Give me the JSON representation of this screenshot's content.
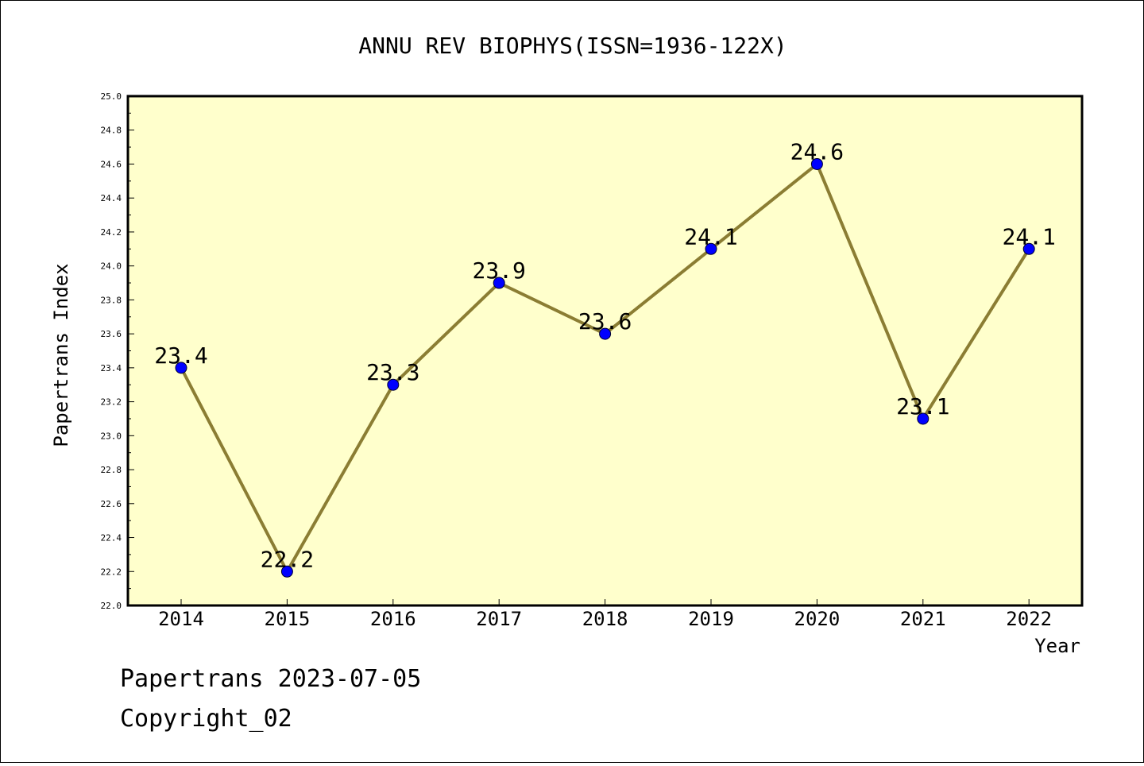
{
  "chart_data": {
    "type": "line",
    "title": "ANNU REV BIOPHYS(ISSN=1936-122X)",
    "xlabel": "Year",
    "ylabel": "Papertrans Index",
    "categories": [
      "2014",
      "2015",
      "2016",
      "2017",
      "2018",
      "2019",
      "2020",
      "2021",
      "2022"
    ],
    "values": [
      23.4,
      22.2,
      23.3,
      23.9,
      23.6,
      24.1,
      24.6,
      23.1,
      24.1
    ],
    "data_labels": [
      "23.4",
      "22.2",
      "23.3",
      "23.9",
      "23.6",
      "24.1",
      "24.6",
      "23.1",
      "24.1"
    ],
    "ylim": [
      22.0,
      25.0
    ],
    "yticks": [
      "22.0",
      "22.2",
      "22.4",
      "22.6",
      "22.8",
      "23.0",
      "23.2",
      "23.4",
      "23.6",
      "23.8",
      "24.0",
      "24.2",
      "24.4",
      "24.6",
      "24.8",
      "25.0"
    ],
    "grid": false,
    "colors": {
      "plot_background": "#ffffcc",
      "line": "#8b7d33",
      "marker": "#0000ff"
    }
  },
  "footer": {
    "line1": "Papertrans 2023-07-05",
    "line2": "Copyright_02"
  }
}
